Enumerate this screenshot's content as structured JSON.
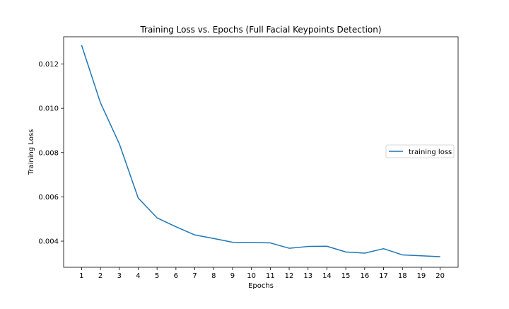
{
  "chart_data": {
    "type": "line",
    "title": "Training Loss vs. Epochs (Full Facial Keypoints Detection)",
    "xlabel": "Epochs",
    "ylabel": "Training Loss",
    "x": [
      1,
      2,
      3,
      4,
      5,
      6,
      7,
      8,
      9,
      10,
      11,
      12,
      13,
      14,
      15,
      16,
      17,
      18,
      19,
      20
    ],
    "xticks": [
      "1",
      "2",
      "3",
      "4",
      "5",
      "6",
      "7",
      "8",
      "9",
      "10",
      "11",
      "12",
      "13",
      "14",
      "15",
      "16",
      "17",
      "18",
      "19",
      "20"
    ],
    "yticks": [
      "0.004",
      "0.006",
      "0.008",
      "0.010",
      "0.012"
    ],
    "xlim": [
      0.05,
      20.95
    ],
    "ylim": [
      0.00282,
      0.01323
    ],
    "grid": false,
    "legend_position": "center-right",
    "series": [
      {
        "name": "training loss",
        "color": "#1f77b4",
        "values": [
          0.01285,
          0.01025,
          0.0084,
          0.00595,
          0.00505,
          0.00465,
          0.00428,
          0.00412,
          0.00395,
          0.00394,
          0.00392,
          0.00368,
          0.00376,
          0.00377,
          0.00351,
          0.00346,
          0.00366,
          0.00338,
          0.00334,
          0.0033
        ]
      }
    ]
  }
}
